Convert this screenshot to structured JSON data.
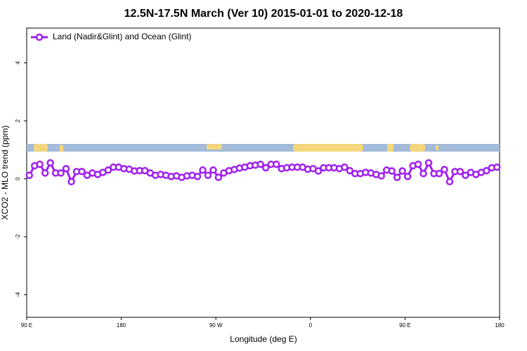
{
  "chart_data": {
    "type": "line",
    "title": "12.5N-17.5N March (Ver 10)   2015-01-01 to 2020-12-18",
    "xlabel": "Longitude (deg E)",
    "ylabel": "XCO2 - MLO trend (ppm)",
    "xlim": [
      90,
      540
    ],
    "ylim": [
      -4.78,
      5.2
    ],
    "xticks": [
      {
        "value": 90,
        "label": "90 E"
      },
      180,
      {
        "value": 270,
        "label": "90 W"
      },
      {
        "value": 360,
        "label": "0"
      },
      {
        "value": 450,
        "label": "90 E"
      },
      {
        "value": 540,
        "label": "180"
      }
    ],
    "yticks": [
      -4,
      -2,
      0,
      2,
      4
    ],
    "legend": "top-left",
    "x": [
      92.5,
      97.5,
      102.5,
      107.5,
      112.5,
      117.5,
      122.5,
      127.5,
      132.5,
      137.5,
      142.5,
      147.5,
      152.5,
      157.5,
      162.5,
      167.5,
      172.5,
      177.5,
      182.5,
      187.5,
      192.5,
      197.5,
      202.5,
      207.5,
      212.5,
      217.5,
      222.5,
      227.5,
      232.5,
      237.5,
      242.5,
      247.5,
      252.5,
      257.5,
      262.5,
      267.5,
      272.5,
      277.5,
      282.5,
      287.5,
      292.5,
      297.5,
      302.5,
      307.5,
      312.5,
      317.5,
      322.5,
      327.5,
      332.5,
      337.5,
      342.5,
      347.5,
      352.5,
      357.5,
      362.5,
      367.5,
      372.5,
      377.5,
      382.5,
      387.5,
      392.5,
      397.5,
      402.5,
      407.5,
      412.5,
      417.5,
      422.5,
      427.5,
      432.5,
      437.5,
      442.5,
      447.5,
      452.5,
      457.5,
      462.5,
      467.5,
      472.5,
      477.5,
      482.5,
      487.5,
      492.5,
      497.5,
      502.5,
      507.5,
      512.5,
      517.5,
      522.5,
      527.5,
      532.5,
      537.5
    ],
    "series": [
      {
        "name": "Land (Nadir&Glint) and Ocean (Glint)",
        "color": "#a020f0",
        "values": [
          0.12,
          0.45,
          0.5,
          0.2,
          0.55,
          0.2,
          0.2,
          0.35,
          -0.1,
          0.25,
          0.25,
          0.12,
          0.2,
          0.15,
          0.22,
          0.3,
          0.4,
          0.4,
          0.35,
          0.33,
          0.27,
          0.28,
          0.28,
          0.2,
          0.12,
          0.15,
          0.12,
          0.08,
          0.1,
          0.05,
          0.1,
          0.12,
          0.08,
          0.3,
          0.12,
          0.3,
          0.05,
          0.2,
          0.28,
          0.32,
          0.37,
          0.4,
          0.45,
          0.47,
          0.5,
          0.38,
          0.5,
          0.5,
          0.35,
          0.38,
          0.4,
          0.4,
          0.4,
          0.33,
          0.35,
          0.27,
          0.38,
          0.38,
          0.38,
          0.35,
          0.4,
          0.28,
          0.18,
          0.18,
          0.22,
          0.2,
          0.15,
          0.1,
          0.3,
          0.27,
          0.05,
          0.27,
          0.08,
          0.45,
          0.5,
          0.18,
          0.55,
          0.18,
          0.18,
          0.32,
          -0.1,
          0.25,
          0.25,
          0.12,
          0.22,
          0.15,
          0.22,
          0.28,
          0.38,
          0.4
        ]
      }
    ]
  }
}
